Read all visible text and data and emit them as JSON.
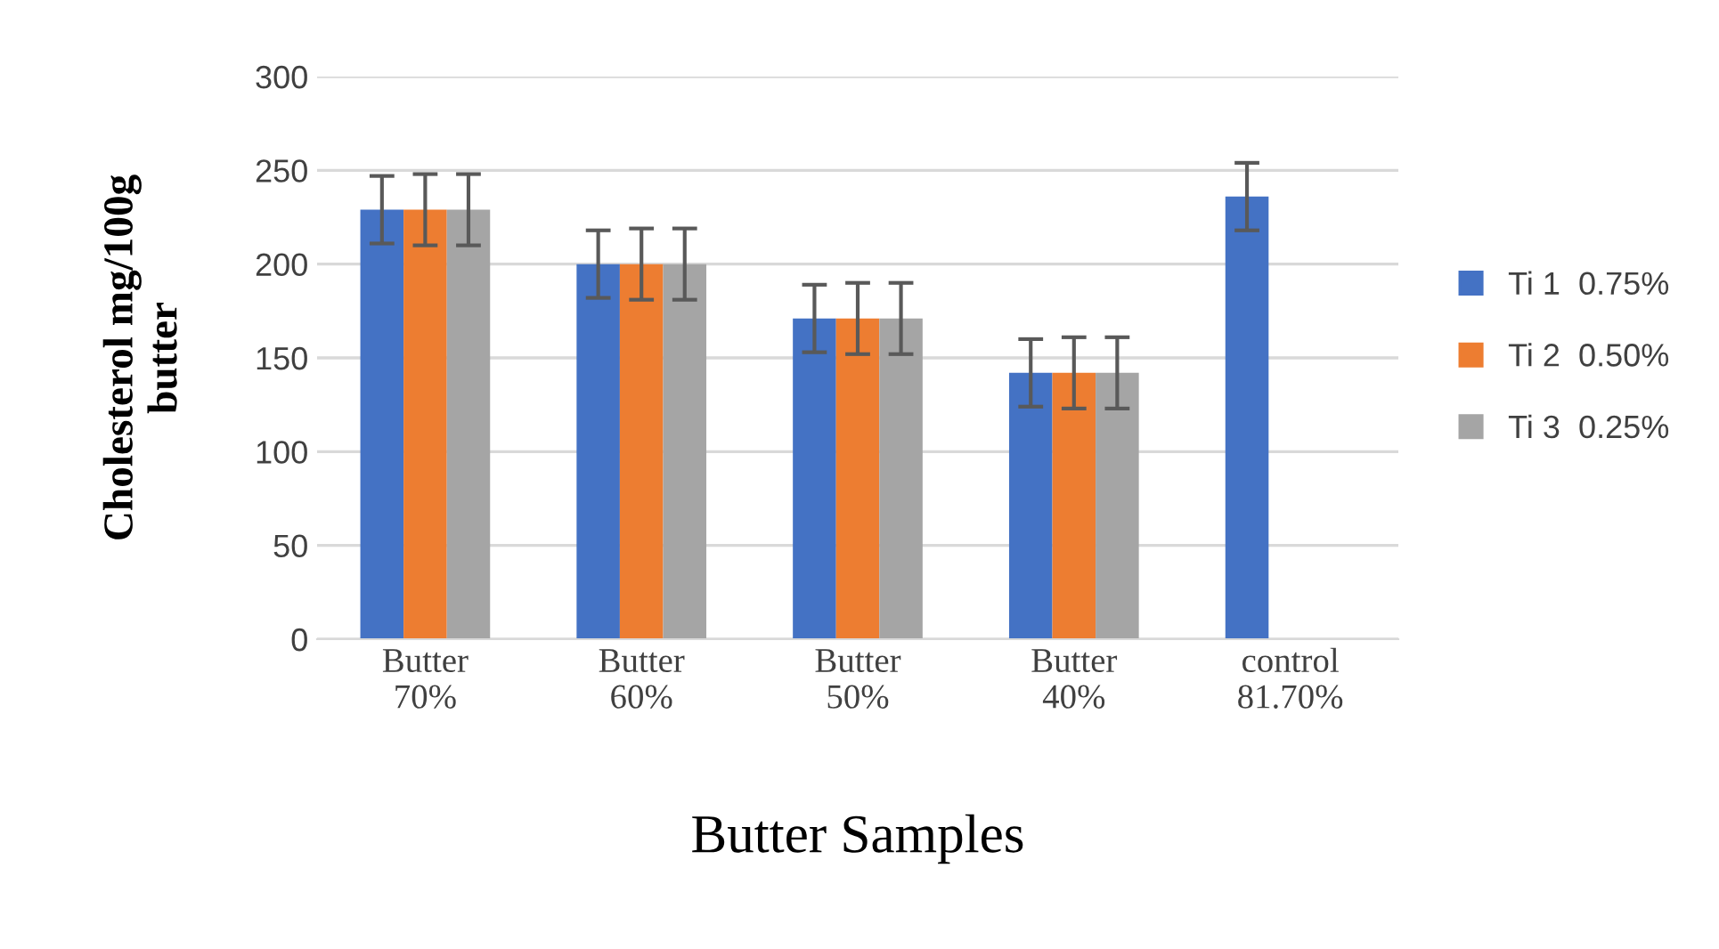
{
  "chart_data": {
    "type": "bar",
    "categories": [
      "Butter\n70%",
      "Butter\n60%",
      "Butter\n50%",
      "Butter\n40%",
      "control\n81.70%"
    ],
    "series": [
      {
        "name": "Ti 1  0.75%",
        "color": "#4472c4",
        "values": [
          229,
          200,
          171,
          142,
          236
        ],
        "errors": [
          18,
          18,
          18,
          18,
          18
        ]
      },
      {
        "name": "Ti 2  0.50%",
        "color": "#ed7d31",
        "values": [
          229,
          200,
          171,
          142,
          null
        ],
        "errors": [
          19,
          19,
          19,
          19,
          null
        ]
      },
      {
        "name": "Ti 3  0.25%",
        "color": "#a5a5a5",
        "values": [
          229,
          200,
          171,
          142,
          null
        ],
        "errors": [
          19,
          19,
          19,
          19,
          null
        ]
      }
    ],
    "xlabel": "Butter Samples",
    "ylabel": "Cholesterol mg/100g\nbutter",
    "ylim": [
      0,
      300
    ],
    "yticks": [
      0,
      50,
      100,
      150,
      200,
      250,
      300
    ],
    "grid": "y",
    "legend": "right"
  }
}
